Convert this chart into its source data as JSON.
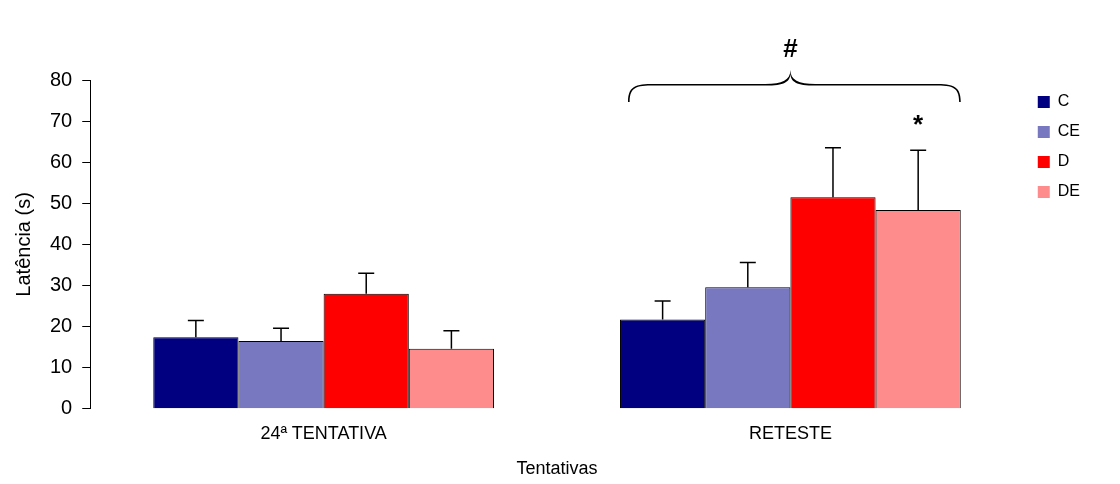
{
  "chart_data": {
    "type": "bar",
    "xlabel": "Tentativas",
    "ylabel": "Latência (s)",
    "categories": [
      "24ª TENTATIVA",
      "RETESTE"
    ],
    "series": [
      {
        "name": "C",
        "color": "#000080",
        "values": [
          17.4,
          21.7
        ],
        "errors": [
          [
            17.4,
            21.5
          ],
          [
            21.7,
            26.2
          ]
        ]
      },
      {
        "name": "CE",
        "color": "#7878c0",
        "values": [
          16.5,
          29.6
        ],
        "errors": [
          [
            16.5,
            19.6
          ],
          [
            29.6,
            35.6
          ]
        ]
      },
      {
        "name": "D",
        "color": "#ff0000",
        "values": [
          28,
          51.5
        ],
        "errors": [
          [
            28,
            33
          ],
          [
            51.5,
            63.5
          ]
        ]
      },
      {
        "name": "DE",
        "color": "#ff8c8c",
        "values": [
          14.6,
          48.4
        ],
        "errors": [
          [
            14.6,
            19
          ],
          [
            48.4,
            62.9
          ]
        ]
      }
    ],
    "ylim": [
      0,
      80
    ],
    "yticks": [
      0,
      10,
      20,
      30,
      40,
      50,
      60,
      70,
      80
    ],
    "grid": false,
    "legend": "top right",
    "annotations": [
      "#",
      "*"
    ]
  }
}
